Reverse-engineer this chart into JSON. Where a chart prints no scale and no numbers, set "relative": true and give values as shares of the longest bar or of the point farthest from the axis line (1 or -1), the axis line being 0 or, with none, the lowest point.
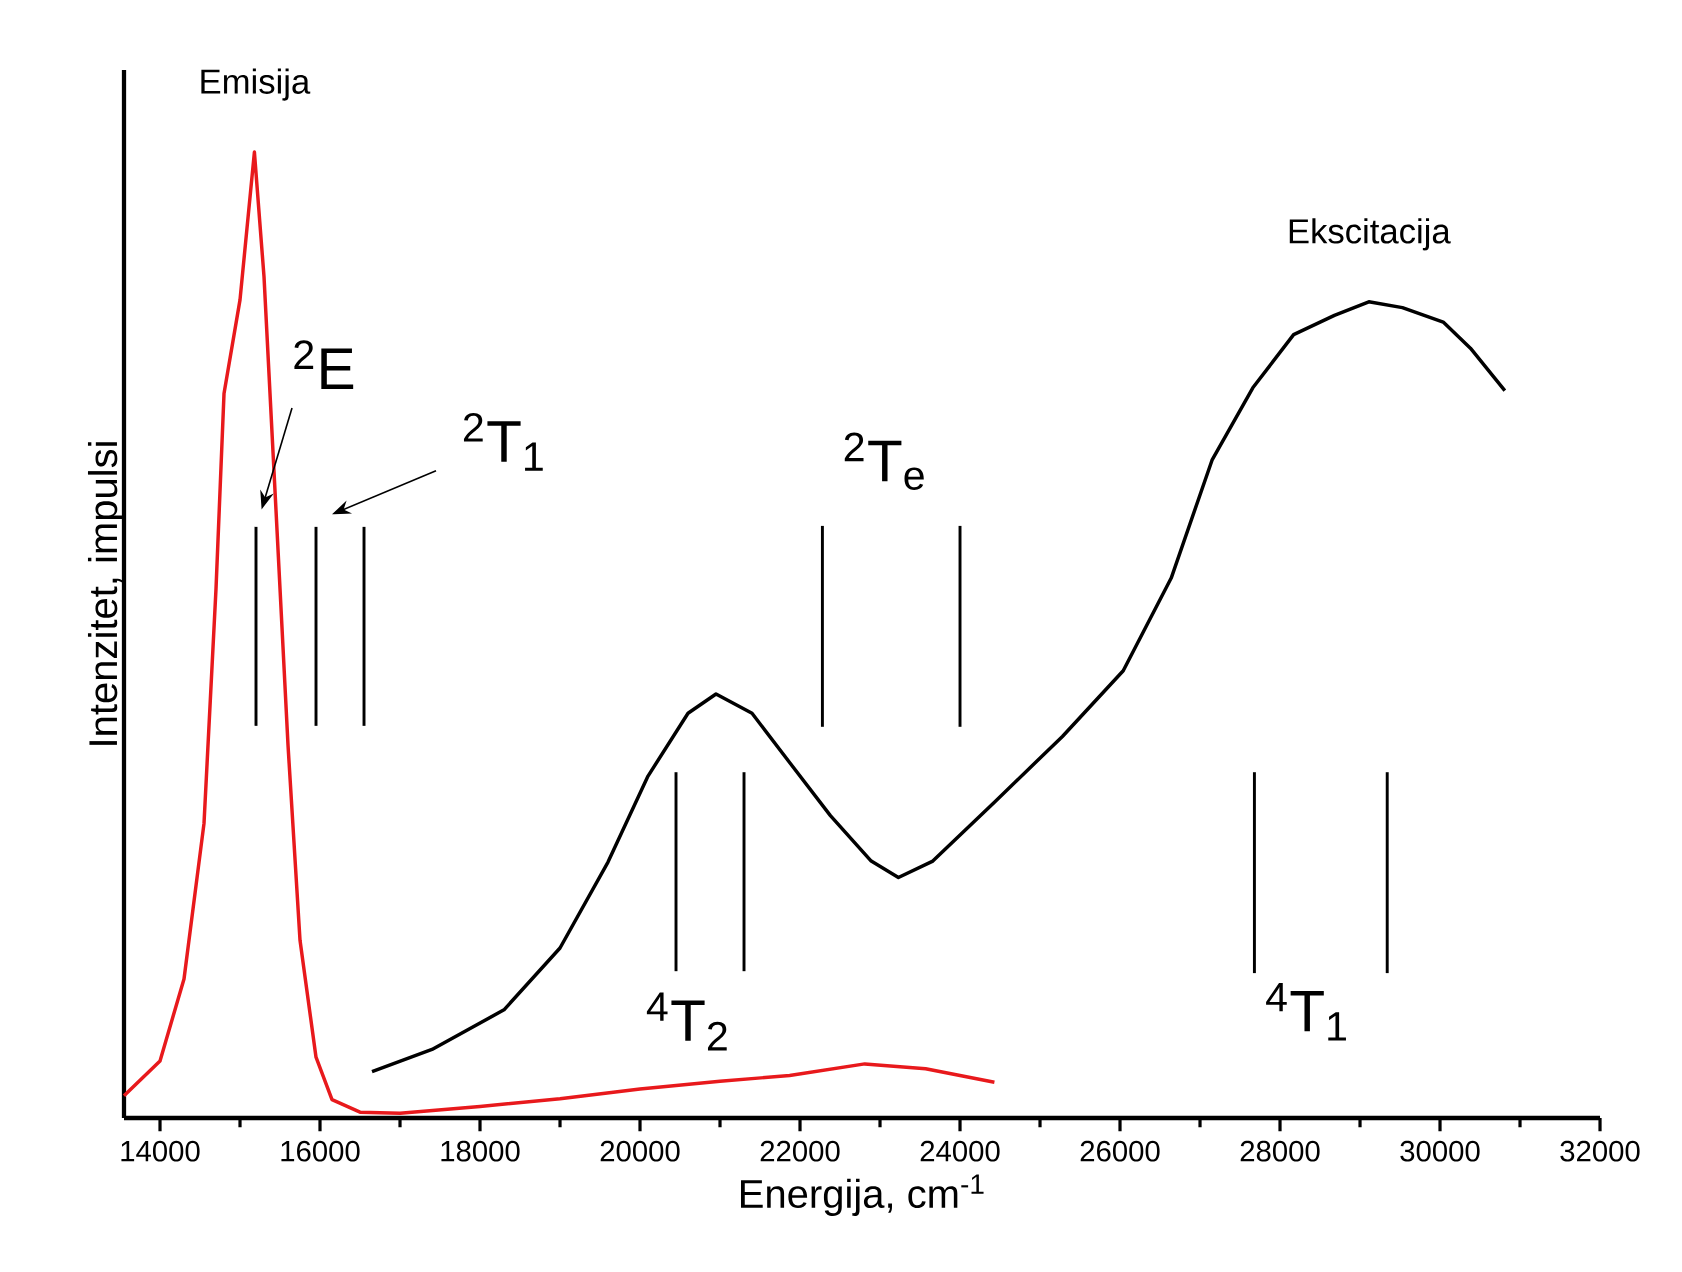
{
  "chart_data": {
    "type": "line",
    "relative": true,
    "xlabel": "Energija, cm$^{-1}$",
    "ylabel": "Intenzitet, impulsi",
    "xlim": [
      13550,
      32000
    ],
    "xticks": [
      14000,
      16000,
      18000,
      20000,
      22000,
      24000,
      26000,
      28000,
      30000,
      32000
    ],
    "series": [
      {
        "name": "Emisija",
        "color": "#e8191c",
        "x": [
          13550,
          14000,
          14300,
          14550,
          14700,
          14800,
          15000,
          15180,
          15300,
          15450,
          15600,
          15750,
          15950,
          16150,
          16500,
          17000,
          18000,
          19000,
          20000,
          21000,
          21870,
          22810,
          23570,
          24430
        ],
        "values": [
          0.023,
          0.059,
          0.144,
          0.305,
          0.548,
          0.75,
          0.847,
          1.0,
          0.871,
          0.629,
          0.386,
          0.184,
          0.063,
          0.019,
          0.006,
          0.005,
          0.012,
          0.02,
          0.03,
          0.038,
          0.044,
          0.056,
          0.051,
          0.037
        ]
      },
      {
        "name": "Ekscitacija",
        "color": "#000000",
        "x": [
          16650,
          17400,
          18300,
          19000,
          19600,
          20100,
          20600,
          20950,
          21400,
          21870,
          22380,
          22890,
          23230,
          23660,
          24430,
          25280,
          26040,
          26640,
          27150,
          27660,
          28170,
          28680,
          29110,
          29530,
          30040,
          30380,
          30810
        ],
        "values": [
          0.048,
          0.071,
          0.112,
          0.176,
          0.265,
          0.354,
          0.419,
          0.439,
          0.419,
          0.368,
          0.313,
          0.266,
          0.249,
          0.266,
          0.327,
          0.395,
          0.463,
          0.559,
          0.681,
          0.756,
          0.811,
          0.831,
          0.845,
          0.839,
          0.824,
          0.797,
          0.753
        ]
      },
      {
        "color": "#000000",
        "x": [
          15200,
          15200
        ],
        "values": [
          0.406,
          0.612
        ]
      },
      {
        "color": "#000000",
        "x": [
          15950,
          15950
        ],
        "values": [
          0.406,
          0.612
        ]
      },
      {
        "color": "#000000",
        "x": [
          16550,
          16550
        ],
        "values": [
          0.406,
          0.612
        ]
      },
      {
        "color": "#000000",
        "x": [
          22280,
          22280
        ],
        "values": [
          0.405,
          0.613
        ]
      },
      {
        "color": "#000000",
        "x": [
          24000,
          24000
        ],
        "values": [
          0.405,
          0.613
        ]
      },
      {
        "color": "#000000",
        "x": [
          20450,
          20450
        ],
        "values": [
          0.152,
          0.358
        ]
      },
      {
        "color": "#000000",
        "x": [
          21300,
          21300
        ],
        "values": [
          0.152,
          0.358
        ]
      },
      {
        "color": "#000000",
        "x": [
          27680,
          27680
        ],
        "values": [
          0.15,
          0.358
        ]
      },
      {
        "color": "#000000",
        "x": [
          29340,
          29340
        ],
        "values": [
          0.15,
          0.358
        ]
      }
    ],
    "annotations": [
      {
        "text": "$^{2}$E",
        "x": 15200,
        "y": 0.612
      },
      {
        "text": "$^{2}$T$_{1}$",
        "x": 15950,
        "y": 0.612
      },
      {
        "text": "$^{2}$T$_{e}$",
        "x": 22280,
        "y": 0.613
      },
      {
        "text": "$^{4}$T$_{2}$",
        "x": 20450,
        "y": 0.152
      },
      {
        "text": "$^{4}$T$_{1}$",
        "x": 27680,
        "y": 0.15
      }
    ],
    "marker": "none",
    "line_style": "solid"
  }
}
